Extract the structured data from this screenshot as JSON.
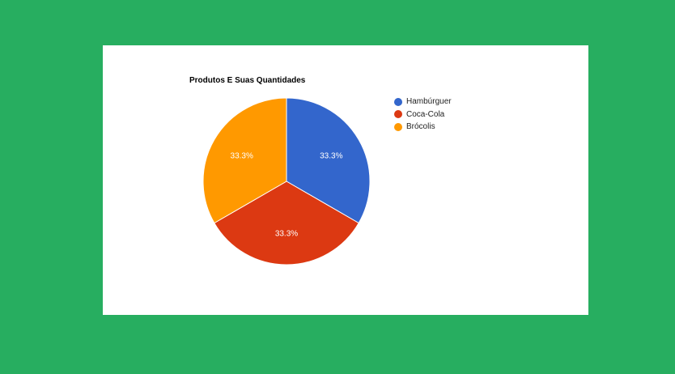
{
  "chart_data": {
    "type": "pie",
    "title": "Produtos E Suas Quantidades",
    "legend_position": "right",
    "slices": [
      {
        "label": "Hambúrguer",
        "value": 1,
        "percent_label": "33.3%",
        "color": "#3366cc"
      },
      {
        "label": "Coca-Cola",
        "value": 1,
        "percent_label": "33.3%",
        "color": "#dc3912"
      },
      {
        "label": "Brócolis",
        "value": 1,
        "percent_label": "33.3%",
        "color": "#ff9900"
      }
    ]
  },
  "colors": {
    "page_background": "#27ae60",
    "card_background": "#ffffff"
  }
}
